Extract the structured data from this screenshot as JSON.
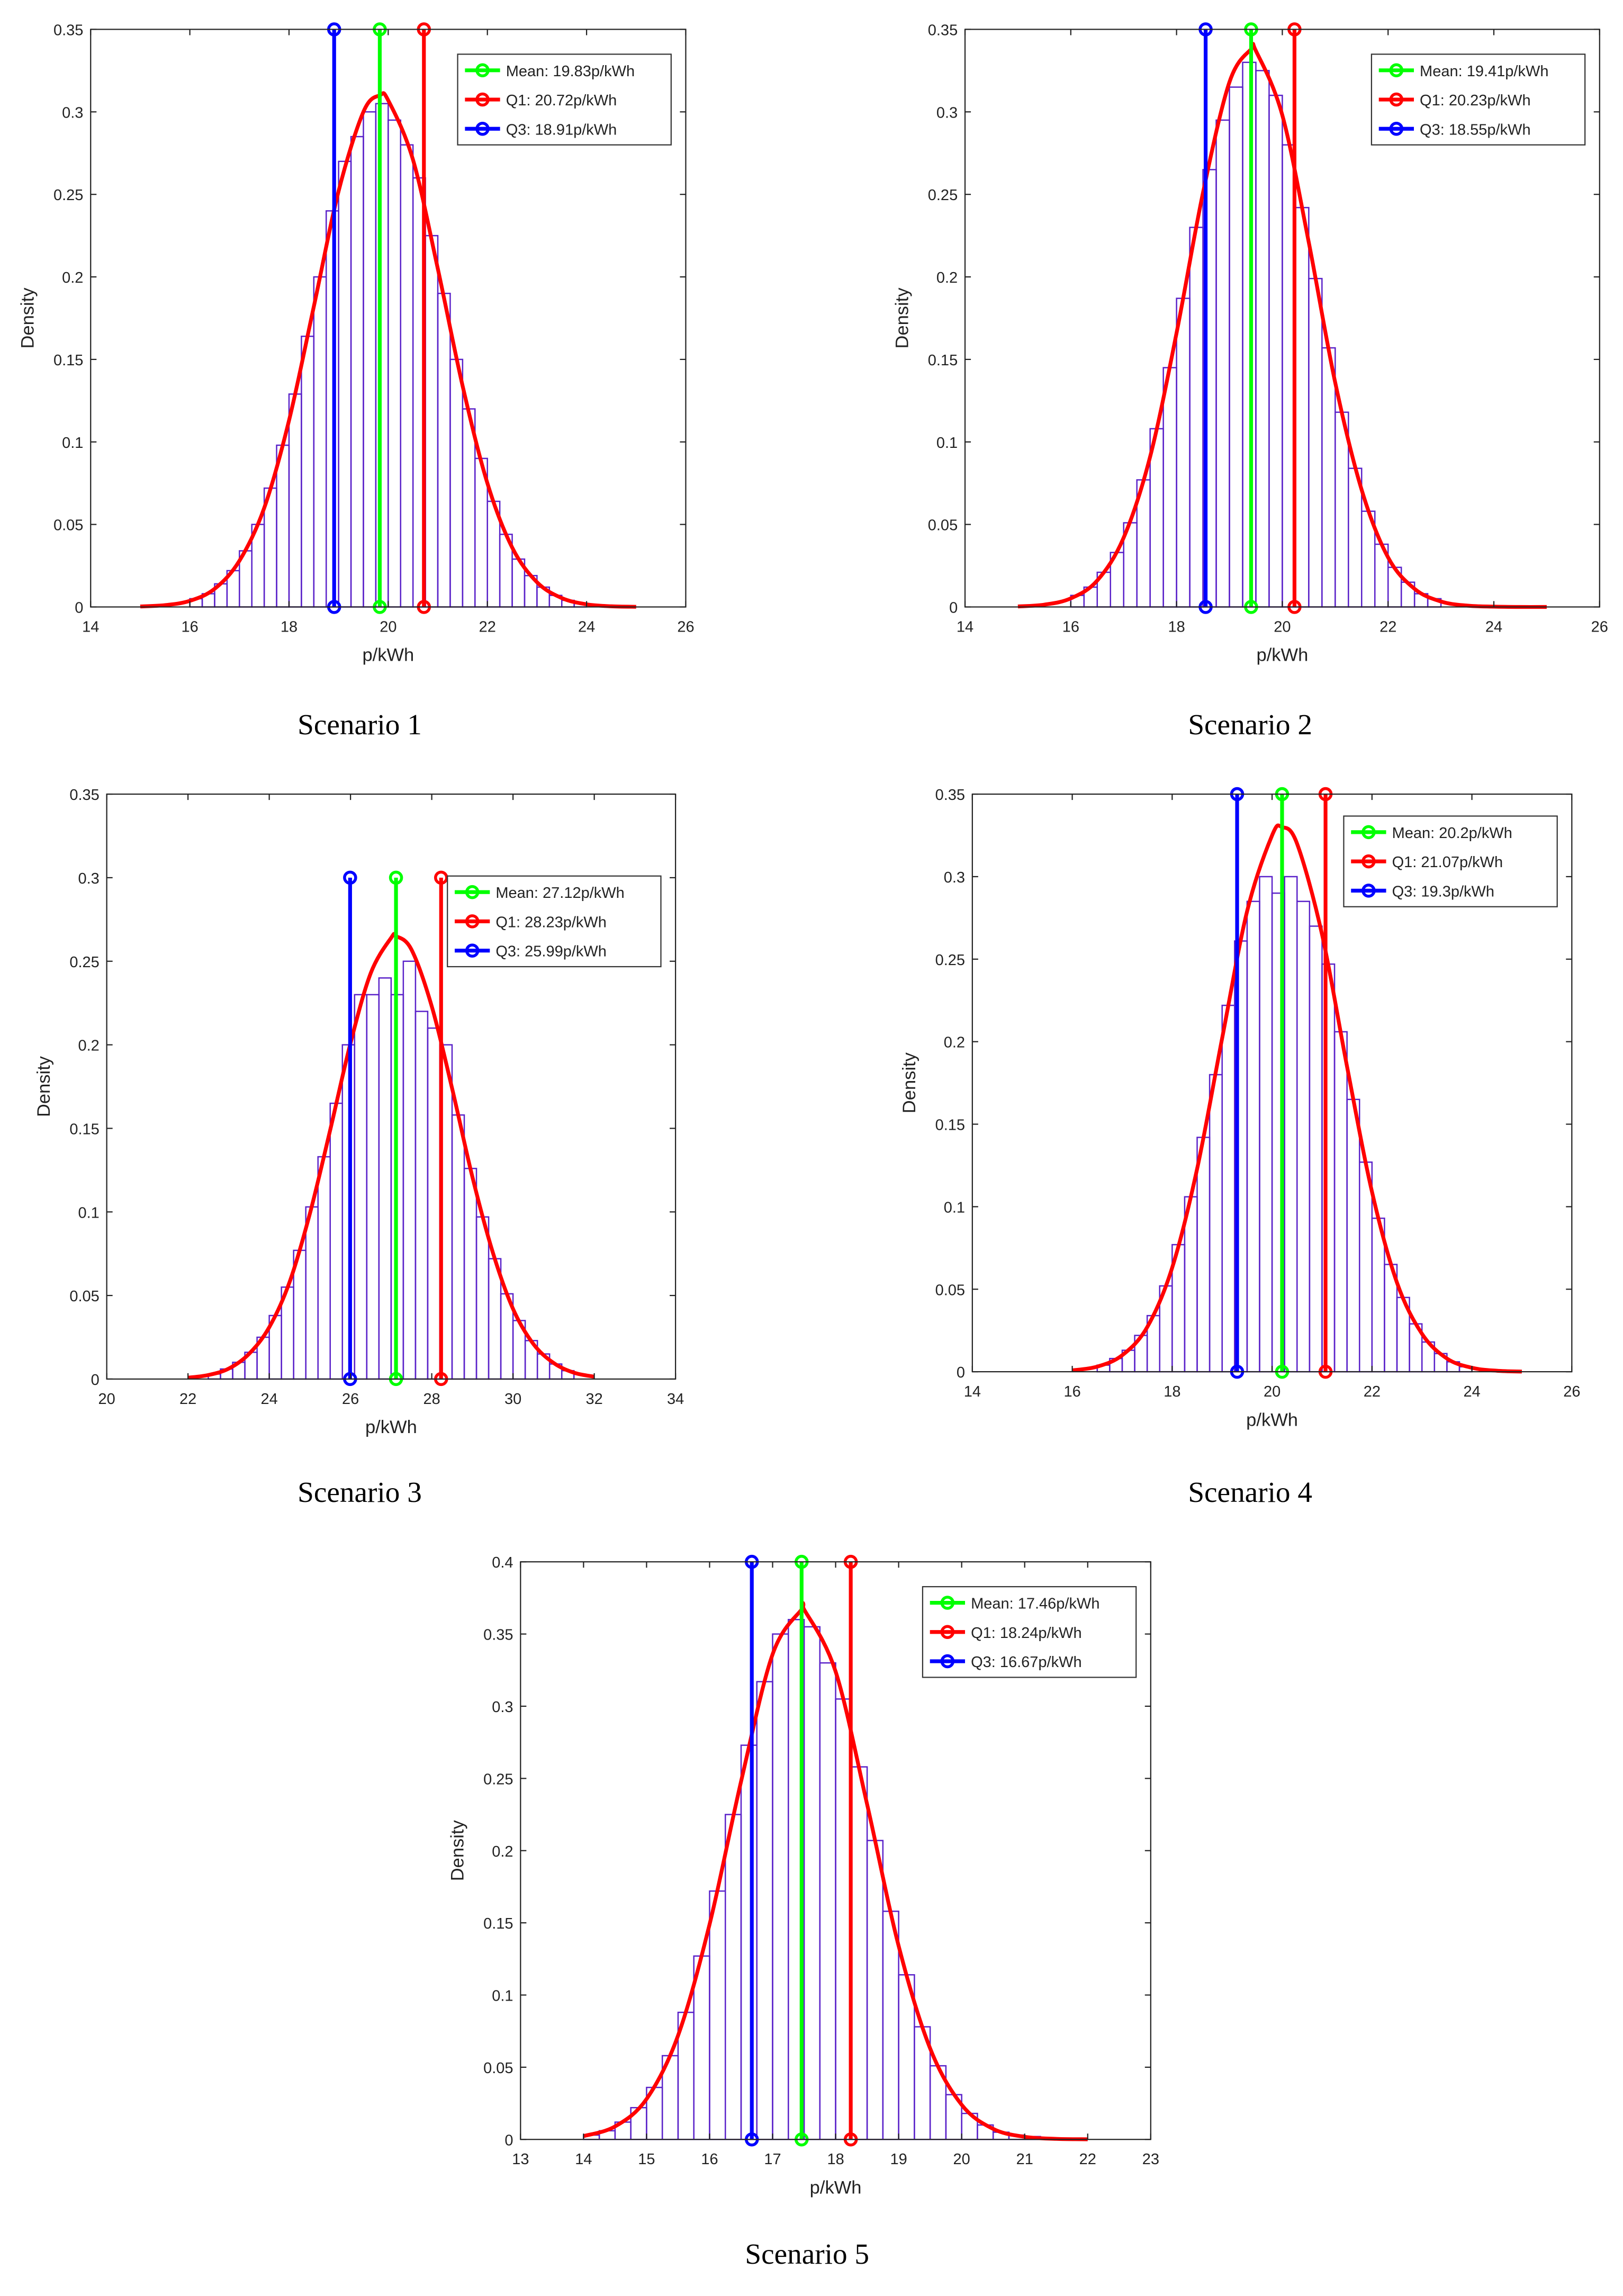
{
  "chart_data": [
    {
      "type": "histogram",
      "title": "Scenario 1",
      "xlabel": "p/kWh",
      "ylabel": "Density",
      "bar_color": "#5a22c9",
      "bins": [
        16,
        16.25,
        16.5,
        16.75,
        17,
        17.25,
        17.5,
        17.75,
        18,
        18.25,
        18.5,
        18.75,
        19,
        19.25,
        19.5,
        19.75,
        20,
        20.25,
        20.5,
        20.75,
        21,
        21.25,
        21.5,
        21.75,
        22,
        22.25,
        22.5,
        22.75,
        23,
        23.25,
        23.5,
        23.75,
        24
      ],
      "counts": [
        0.005,
        0.008,
        0.014,
        0.022,
        0.034,
        0.05,
        0.072,
        0.098,
        0.129,
        0.164,
        0.2,
        0.24,
        0.27,
        0.285,
        0.3,
        0.305,
        0.295,
        0.28,
        0.26,
        0.225,
        0.19,
        0.15,
        0.12,
        0.09,
        0.064,
        0.044,
        0.029,
        0.019,
        0.012,
        0.007,
        0.004,
        0.002
      ],
      "fit": {
        "color": "#ff0000",
        "x": [
          15,
          15.5,
          16,
          16.5,
          17,
          17.5,
          18,
          18.5,
          19,
          19.5,
          19.83,
          20,
          20.5,
          21,
          21.5,
          22,
          22.5,
          23,
          23.5,
          24,
          24.5,
          25
        ],
        "values": [
          0.0003,
          0.0011,
          0.0037,
          0.011,
          0.028,
          0.06,
          0.113,
          0.182,
          0.252,
          0.3,
          0.31,
          0.307,
          0.271,
          0.205,
          0.134,
          0.075,
          0.036,
          0.015,
          0.0054,
          0.0016,
          0.0004,
          0.0001
        ]
      },
      "markers": [
        {
          "name": "Mean: 19.83p/kWh",
          "color": "#00ff00",
          "x": 19.83,
          "y": [
            0,
            0.35
          ]
        },
        {
          "name": "Q1: 20.72p/kWh",
          "color": "#ff0000",
          "x": 20.72,
          "y": [
            0,
            0.35
          ]
        },
        {
          "name": "Q3: 18.91p/kWh",
          "color": "#0000ff",
          "x": 18.91,
          "y": [
            0,
            0.35
          ]
        }
      ],
      "xlim": [
        14,
        26
      ],
      "xticks": [
        14,
        16,
        18,
        20,
        22,
        24,
        26
      ],
      "ylim": [
        0,
        0.35
      ],
      "yticks": [
        0,
        0.05,
        0.1,
        0.15,
        0.2,
        0.25,
        0.3,
        0.35
      ],
      "legend": "upper right"
    },
    {
      "type": "histogram",
      "title": "Scenario 2",
      "xlabel": "p/kWh",
      "ylabel": "Density",
      "bar_color": "#5a22c9",
      "bins": [
        16,
        16.25,
        16.5,
        16.75,
        17,
        17.25,
        17.5,
        17.75,
        18,
        18.25,
        18.5,
        18.75,
        19,
        19.25,
        19.5,
        19.75,
        20,
        20.25,
        20.5,
        20.75,
        21,
        21.25,
        21.5,
        21.75,
        22,
        22.25,
        22.5,
        22.75,
        23
      ],
      "counts": [
        0.007,
        0.012,
        0.021,
        0.033,
        0.051,
        0.077,
        0.108,
        0.145,
        0.187,
        0.23,
        0.265,
        0.295,
        0.315,
        0.33,
        0.325,
        0.31,
        0.28,
        0.242,
        0.199,
        0.157,
        0.118,
        0.084,
        0.058,
        0.038,
        0.024,
        0.015,
        0.008,
        0.005
      ],
      "fit": {
        "color": "#ff0000",
        "x": [
          15,
          15.5,
          16,
          16.5,
          17,
          17.5,
          18,
          18.5,
          19,
          19.41,
          19.5,
          20,
          20.5,
          21,
          21.5,
          22,
          22.5,
          23,
          23.5,
          24,
          24.5,
          25
        ],
        "values": [
          0.0003,
          0.0014,
          0.0052,
          0.016,
          0.042,
          0.091,
          0.166,
          0.251,
          0.318,
          0.338,
          0.337,
          0.298,
          0.221,
          0.136,
          0.071,
          0.03,
          0.011,
          0.0033,
          0.0008,
          0.0002,
          0,
          0
        ]
      },
      "markers": [
        {
          "name": "Mean: 19.41p/kWh",
          "color": "#00ff00",
          "x": 19.41,
          "y": [
            0,
            0.35
          ]
        },
        {
          "name": "Q1: 20.23p/kWh",
          "color": "#ff0000",
          "x": 20.23,
          "y": [
            0,
            0.35
          ]
        },
        {
          "name": "Q3: 18.55p/kWh",
          "color": "#0000ff",
          "x": 18.55,
          "y": [
            0,
            0.35
          ]
        }
      ],
      "xlim": [
        14,
        26
      ],
      "xticks": [
        14,
        16,
        18,
        20,
        22,
        24,
        26
      ],
      "ylim": [
        0,
        0.35
      ],
      "yticks": [
        0,
        0.05,
        0.1,
        0.15,
        0.2,
        0.25,
        0.3,
        0.35
      ],
      "legend": "upper right"
    },
    {
      "type": "histogram",
      "title": "Scenario 3",
      "xlabel": "p/kWh",
      "ylabel": "Density",
      "bar_color": "#5a22c9",
      "bins": [
        22.5,
        22.8,
        23.1,
        23.4,
        23.7,
        24,
        24.3,
        24.6,
        24.9,
        25.2,
        25.5,
        25.8,
        26.1,
        26.4,
        26.7,
        27,
        27.3,
        27.6,
        27.9,
        28.2,
        28.5,
        28.8,
        29.1,
        29.4,
        29.7,
        30,
        30.3,
        30.6,
        30.9,
        31.2,
        31.5
      ],
      "counts": [
        0.003,
        0.006,
        0.01,
        0.016,
        0.025,
        0.038,
        0.055,
        0.077,
        0.103,
        0.133,
        0.165,
        0.2,
        0.23,
        0.23,
        0.24,
        0.23,
        0.25,
        0.22,
        0.21,
        0.2,
        0.158,
        0.126,
        0.097,
        0.072,
        0.051,
        0.035,
        0.023,
        0.015,
        0.009,
        0.005
      ],
      "fit": {
        "color": "#ff0000",
        "x": [
          22,
          22.5,
          23,
          23.5,
          24,
          24.5,
          25,
          25.5,
          26,
          26.5,
          27,
          27.12,
          27.5,
          28,
          28.5,
          29,
          29.5,
          30,
          30.5,
          31,
          31.5,
          32
        ],
        "values": [
          0.0008,
          0.0024,
          0.0062,
          0.015,
          0.031,
          0.058,
          0.099,
          0.149,
          0.201,
          0.243,
          0.264,
          0.265,
          0.257,
          0.223,
          0.174,
          0.121,
          0.076,
          0.042,
          0.021,
          0.0096,
          0.0038,
          0.0014
        ]
      },
      "markers": [
        {
          "name": "Mean: 27.12p/kWh",
          "color": "#00ff00",
          "x": 27.12,
          "y": [
            0,
            0.3
          ]
        },
        {
          "name": "Q1: 28.23p/kWh",
          "color": "#ff0000",
          "x": 28.23,
          "y": [
            0,
            0.3
          ]
        },
        {
          "name": "Q3: 25.99p/kWh",
          "color": "#0000ff",
          "x": 25.99,
          "y": [
            0,
            0.3
          ]
        }
      ],
      "xlim": [
        20,
        34
      ],
      "xticks": [
        20,
        22,
        24,
        26,
        28,
        30,
        32,
        34
      ],
      "ylim": [
        0,
        0.35
      ],
      "yticks": [
        0,
        0.05,
        0.1,
        0.15,
        0.2,
        0.25,
        0.3,
        0.35
      ],
      "legend": "upper right"
    },
    {
      "type": "histogram",
      "title": "Scenario 4",
      "xlabel": "p/kWh",
      "ylabel": "Density",
      "bar_color": "#5a22c9",
      "bins": [
        16.5,
        16.75,
        17,
        17.25,
        17.5,
        17.75,
        18,
        18.25,
        18.5,
        18.75,
        19,
        19.25,
        19.5,
        19.75,
        20,
        20.25,
        20.5,
        20.75,
        21,
        21.25,
        21.5,
        21.75,
        22,
        22.25,
        22.5,
        22.75,
        23,
        23.25,
        23.5,
        23.75,
        24
      ],
      "counts": [
        0.004,
        0.008,
        0.013,
        0.022,
        0.034,
        0.052,
        0.077,
        0.106,
        0.142,
        0.18,
        0.222,
        0.261,
        0.285,
        0.3,
        0.29,
        0.3,
        0.285,
        0.27,
        0.247,
        0.206,
        0.165,
        0.127,
        0.093,
        0.065,
        0.045,
        0.029,
        0.018,
        0.011,
        0.006,
        0.003
      ],
      "fit": {
        "color": "#ff0000",
        "x": [
          16,
          16.5,
          17,
          17.5,
          18,
          18.5,
          19,
          19.5,
          20,
          20.2,
          20.5,
          21,
          21.5,
          22,
          22.5,
          23,
          23.5,
          24,
          24.5,
          25
        ],
        "values": [
          0.0008,
          0.0031,
          0.01,
          0.027,
          0.063,
          0.123,
          0.202,
          0.279,
          0.325,
          0.33,
          0.32,
          0.265,
          0.185,
          0.109,
          0.054,
          0.023,
          0.008,
          0.0024,
          0.0006,
          0.0001
        ]
      },
      "markers": [
        {
          "name": "Mean: 20.2p/kWh",
          "color": "#00ff00",
          "x": 20.2,
          "y": [
            0,
            0.35
          ]
        },
        {
          "name": "Q1: 21.07p/kWh",
          "color": "#ff0000",
          "x": 21.07,
          "y": [
            0,
            0.35
          ]
        },
        {
          "name": "Q3: 19.3p/kWh",
          "color": "#0000ff",
          "x": 19.3,
          "y": [
            0,
            0.35
          ]
        }
      ],
      "xlim": [
        14,
        26
      ],
      "xticks": [
        14,
        16,
        18,
        20,
        22,
        24,
        26
      ],
      "ylim": [
        0,
        0.35
      ],
      "yticks": [
        0,
        0.05,
        0.1,
        0.15,
        0.2,
        0.25,
        0.3,
        0.35
      ],
      "legend": "upper right"
    },
    {
      "type": "histogram",
      "title": "Scenario 5",
      "xlabel": "p/kWh",
      "ylabel": "Density",
      "bar_color": "#5a22c9",
      "bins": [
        14,
        14.25,
        14.5,
        14.75,
        15,
        15.25,
        15.5,
        15.75,
        16,
        16.25,
        16.5,
        16.75,
        17,
        17.25,
        17.5,
        17.75,
        18,
        18.25,
        18.5,
        18.75,
        19,
        19.25,
        19.5,
        19.75,
        20,
        20.25,
        20.5,
        20.75,
        21,
        21.25,
        21.5
      ],
      "counts": [
        0.003,
        0.006,
        0.012,
        0.022,
        0.036,
        0.058,
        0.088,
        0.127,
        0.172,
        0.225,
        0.273,
        0.317,
        0.35,
        0.36,
        0.355,
        0.33,
        0.305,
        0.258,
        0.207,
        0.158,
        0.114,
        0.078,
        0.051,
        0.031,
        0.018,
        0.01,
        0.005,
        0.003,
        0.002,
        0.001
      ],
      "fit": {
        "color": "#ff0000",
        "x": [
          14,
          14.5,
          15,
          15.5,
          16,
          16.5,
          17,
          17.46,
          17.5,
          18,
          18.5,
          19,
          19.5,
          20,
          20.5,
          21,
          21.5,
          22
        ],
        "values": [
          0.0023,
          0.009,
          0.028,
          0.072,
          0.149,
          0.248,
          0.336,
          0.367,
          0.367,
          0.324,
          0.232,
          0.134,
          0.063,
          0.024,
          0.0073,
          0.0018,
          0.0004,
          0.0001
        ]
      },
      "markers": [
        {
          "name": "Mean: 17.46p/kWh",
          "color": "#00ff00",
          "x": 17.46,
          "y": [
            0,
            0.4
          ]
        },
        {
          "name": "Q1: 18.24p/kWh",
          "color": "#ff0000",
          "x": 18.24,
          "y": [
            0,
            0.4
          ]
        },
        {
          "name": "Q3: 16.67p/kWh",
          "color": "#0000ff",
          "x": 16.67,
          "y": [
            0,
            0.4
          ]
        }
      ],
      "xlim": [
        13,
        23
      ],
      "xticks": [
        13,
        14,
        15,
        16,
        17,
        18,
        19,
        20,
        21,
        22,
        23
      ],
      "ylim": [
        0,
        0.4
      ],
      "yticks": [
        0,
        0.05,
        0.1,
        0.15,
        0.2,
        0.25,
        0.3,
        0.35,
        0.4
      ],
      "legend": "upper right"
    }
  ]
}
